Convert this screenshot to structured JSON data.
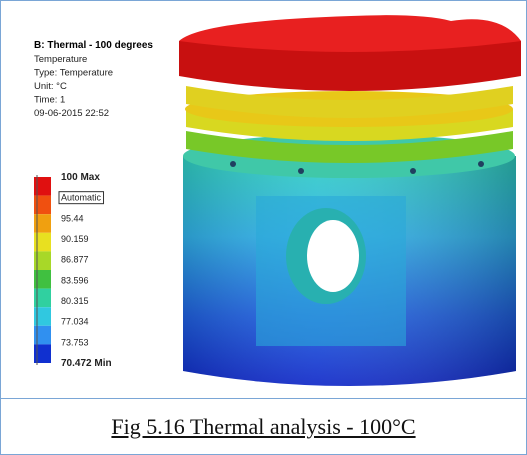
{
  "header": {
    "title": "B: Thermal - 100 degrees",
    "lines": [
      "Temperature",
      "Type: Temperature",
      "Unit: °C",
      "Time: 1",
      "09-06-2015 22:52"
    ]
  },
  "legend": {
    "labels": [
      "100 Max",
      "Automatic",
      "95.44",
      "90.159",
      "86.877",
      "83.596",
      "80.315",
      "77.034",
      "73.753",
      "70.472 Min"
    ],
    "colors": [
      "#e01010",
      "#f05010",
      "#f0a010",
      "#e8e020",
      "#a8d828",
      "#40c040",
      "#30d0a0",
      "#30c8e0",
      "#3090f0",
      "#1030d0"
    ]
  },
  "caption": "Fig 5.16 Thermal analysis - 100°C"
}
